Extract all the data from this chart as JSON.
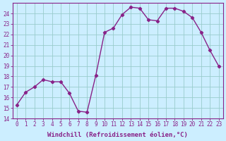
{
  "x": [
    0,
    1,
    2,
    3,
    4,
    5,
    6,
    7,
    8,
    9,
    10,
    11,
    12,
    13,
    14,
    15,
    16,
    17,
    18,
    19,
    20,
    21,
    22,
    23
  ],
  "y": [
    15.3,
    16.5,
    17.0,
    17.7,
    17.5,
    17.5,
    16.4,
    14.7,
    14.6,
    18.1,
    22.2,
    22.6,
    23.9,
    24.6,
    24.5,
    23.4,
    23.3,
    24.5,
    24.5,
    24.2,
    23.6,
    22.2,
    20.5,
    19.0
  ],
  "line_color": "#882288",
  "marker": "D",
  "marker_size": 2.2,
  "bg_color": "#cceeff",
  "grid_color": "#99cccc",
  "xlabel": "Windchill (Refroidissement éolien,°C)",
  "ylabel": "",
  "ylim": [
    14,
    25
  ],
  "xlim": [
    -0.5,
    23.5
  ],
  "yticks": [
    14,
    15,
    16,
    17,
    18,
    19,
    20,
    21,
    22,
    23,
    24
  ],
  "xticks": [
    0,
    1,
    2,
    3,
    4,
    5,
    6,
    7,
    8,
    9,
    10,
    11,
    12,
    13,
    14,
    15,
    16,
    17,
    18,
    19,
    20,
    21,
    22,
    23
  ],
  "tick_fontsize": 5.5,
  "xlabel_fontsize": 6.5,
  "xlabel_color": "#882288",
  "tick_color": "#882288",
  "spine_color": "#882288",
  "linewidth": 1.0
}
